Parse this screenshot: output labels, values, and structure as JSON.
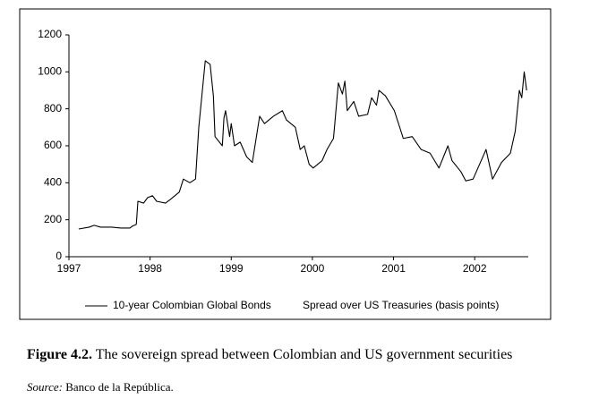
{
  "chart_data": {
    "type": "line",
    "x": [
      1997.12,
      1997.25,
      1997.31,
      1997.39,
      1997.53,
      1997.64,
      1997.75,
      1997.78,
      1997.83,
      1997.85,
      1997.92,
      1997.97,
      1998.03,
      1998.08,
      1998.19,
      1998.25,
      1998.36,
      1998.41,
      1998.49,
      1998.56,
      1998.6,
      1998.68,
      1998.74,
      1998.78,
      1998.8,
      1998.89,
      1998.91,
      1998.93,
      1998.98,
      1999.0,
      1999.04,
      1999.11,
      1999.19,
      1999.26,
      1999.35,
      1999.41,
      1999.52,
      1999.63,
      1999.68,
      1999.79,
      1999.85,
      1999.9,
      1999.96,
      2000.01,
      2000.12,
      2000.18,
      2000.26,
      2000.32,
      2000.37,
      2000.4,
      2000.43,
      2000.51,
      2000.57,
      2000.68,
      2000.73,
      2000.79,
      2000.82,
      2000.9,
      2001.01,
      2001.12,
      2001.23,
      2001.34,
      2001.45,
      2001.56,
      2001.67,
      2001.72,
      2001.83,
      2001.89,
      2001.98,
      2002.06,
      2002.14,
      2002.22,
      2002.33,
      2002.44,
      2002.5,
      2002.55,
      2002.58,
      2002.61,
      2002.64
    ],
    "series": [
      {
        "name": "10-year Colombian Global Bonds",
        "color": "#000000",
        "values": [
          150,
          160,
          170,
          160,
          160,
          155,
          155,
          165,
          175,
          300,
          290,
          320,
          330,
          300,
          290,
          310,
          350,
          420,
          400,
          420,
          700,
          1060,
          1040,
          870,
          650,
          600,
          750,
          790,
          650,
          720,
          600,
          620,
          540,
          510,
          760,
          720,
          760,
          790,
          740,
          700,
          580,
          600,
          500,
          480,
          520,
          580,
          640,
          940,
          880,
          950,
          790,
          840,
          760,
          770,
          860,
          820,
          900,
          870,
          790,
          640,
          650,
          580,
          560,
          480,
          600,
          520,
          460,
          410,
          420,
          500,
          580,
          420,
          510,
          560,
          680,
          900,
          860,
          1000,
          900
        ]
      }
    ],
    "legend_note": "Spread over US Treasuries (basis points)",
    "xlim": [
      1997,
      2002.66
    ],
    "xticks": [
      1997,
      1998,
      1999,
      2000,
      2001,
      2002
    ],
    "ylim": [
      0,
      1200
    ],
    "yticks": [
      0,
      200,
      400,
      600,
      800,
      1000,
      1200
    ],
    "grid": false
  },
  "caption": {
    "label": "Figure 4.2.",
    "text": "The sovereign spread between Colombian and US government securities"
  },
  "source": {
    "label": "Source:",
    "text": "Banco de la República."
  }
}
